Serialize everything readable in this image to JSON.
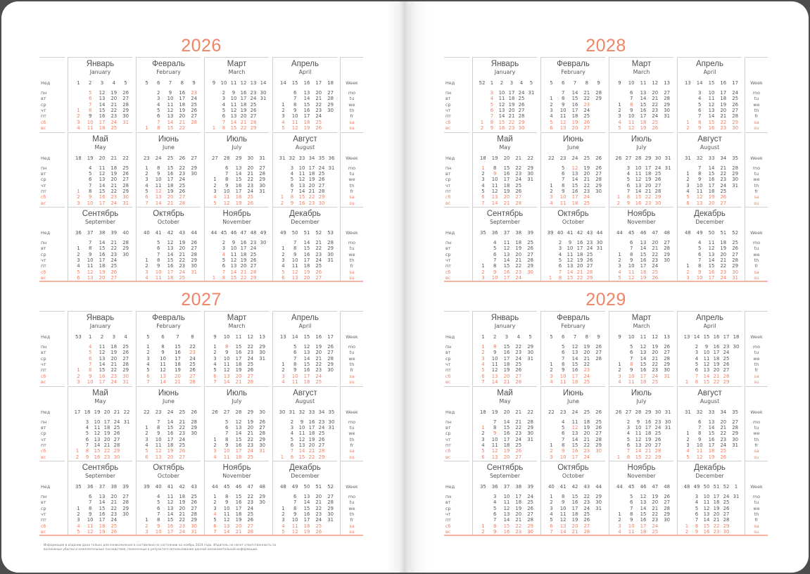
{
  "colors": {
    "accent": "#ef8467",
    "text": "#555555",
    "lines": "#cfcfcf"
  },
  "labels": {
    "week_ru": "Нед",
    "weekdays_ru": [
      "пн",
      "вт",
      "ср",
      "чт",
      "пт",
      "сб",
      "вс"
    ],
    "week_en": "Week",
    "weekdays_en": [
      "mo",
      "tu",
      "we",
      "th",
      "fr",
      "sa",
      "su"
    ]
  },
  "month_names": [
    {
      "ru": "Январь",
      "en": "January"
    },
    {
      "ru": "Февраль",
      "en": "February"
    },
    {
      "ru": "Март",
      "en": "March"
    },
    {
      "ru": "Апрель",
      "en": "April"
    },
    {
      "ru": "Май",
      "en": "May"
    },
    {
      "ru": "Июнь",
      "en": "June"
    },
    {
      "ru": "Июль",
      "en": "July"
    },
    {
      "ru": "Август",
      "en": "August"
    },
    {
      "ru": "Сентябрь",
      "en": "September"
    },
    {
      "ru": "Октябрь",
      "en": "October"
    },
    {
      "ru": "Ноябрь",
      "en": "November"
    },
    {
      "ru": "Декабрь",
      "en": "December"
    }
  ],
  "pages": [
    {
      "years": [
        {
          "year": "2026",
          "weeks": [
            [
              "1",
              "2",
              "3",
              "4",
              "5"
            ],
            [
              "5",
              "6",
              "7",
              "8",
              "9"
            ],
            [
              "9",
              "10",
              "11",
              "12",
              "13",
              "14"
            ],
            [
              "14",
              "15",
              "16",
              "17",
              "18"
            ],
            [
              "18",
              "19",
              "20",
              "21",
              "22"
            ],
            [
              "23",
              "24",
              "25",
              "26",
              "27"
            ],
            [
              "27",
              "28",
              "29",
              "30",
              "31"
            ],
            [
              "31",
              "32",
              "33",
              "34",
              "35",
              "36"
            ],
            [
              "36",
              "37",
              "38",
              "39",
              "40"
            ],
            [
              "40",
              "41",
              "42",
              "43",
              "44"
            ],
            [
              "44",
              "45",
              "46",
              "47",
              "48",
              "49"
            ],
            [
              "49",
              "50",
              "51",
              "52",
              "53"
            ]
          ],
          "holidays": {
            "1": [
              1,
              2,
              5,
              6,
              7,
              8
            ],
            "2": [
              23
            ],
            "5": [
              1
            ],
            "6": [
              12
            ],
            "11": [
              4
            ]
          }
        },
        {
          "year": "2027",
          "weeks": [
            [
              "53",
              "1",
              "2",
              "3",
              "4"
            ],
            [
              "5",
              "6",
              "7",
              "8"
            ],
            [
              "9",
              "10",
              "11",
              "12",
              "13"
            ],
            [
              "13",
              "14",
              "15",
              "16",
              "17"
            ],
            [
              "17",
              "18",
              "19",
              "20",
              "21",
              "22"
            ],
            [
              "22",
              "23",
              "24",
              "25",
              "26"
            ],
            [
              "26",
              "27",
              "28",
              "29",
              "30"
            ],
            [
              "30",
              "31",
              "32",
              "33",
              "34",
              "35"
            ],
            [
              "35",
              "36",
              "37",
              "38",
              "39"
            ],
            [
              "39",
              "40",
              "41",
              "42",
              "43"
            ],
            [
              "44",
              "45",
              "46",
              "47",
              "48"
            ],
            [
              "48",
              "49",
              "50",
              "51",
              "52"
            ]
          ],
          "holidays": {
            "1": [
              1,
              4,
              5,
              6,
              7,
              8
            ],
            "2": [
              23
            ],
            "3": [
              8
            ],
            "11": [
              4
            ]
          }
        }
      ],
      "footer": "Информация в издании дана только для ознакомления и составлена по состоянию на ноябрь 2024 года. Издатель не несет ответственность за возможные убытки и нежелательные последствия, понесенные в результате использования данной ознакомительной информации."
    },
    {
      "years": [
        {
          "year": "2028",
          "weeks": [
            [
              "52",
              "1",
              "2",
              "3",
              "4",
              "5"
            ],
            [
              "5",
              "6",
              "7",
              "8",
              "9"
            ],
            [
              "9",
              "10",
              "11",
              "12",
              "13"
            ],
            [
              "13",
              "14",
              "15",
              "16",
              "17"
            ],
            [
              "18",
              "19",
              "20",
              "21",
              "22"
            ],
            [
              "22",
              "23",
              "24",
              "25",
              "26"
            ],
            [
              "26",
              "27",
              "28",
              "29",
              "30",
              "31"
            ],
            [
              "31",
              "32",
              "33",
              "34",
              "35"
            ],
            [
              "35",
              "36",
              "37",
              "38",
              "39"
            ],
            [
              "39",
              "40",
              "41",
              "42",
              "43",
              "44"
            ],
            [
              "44",
              "45",
              "46",
              "47",
              "48"
            ],
            [
              "48",
              "49",
              "50",
              "51",
              "52"
            ]
          ],
          "holidays": {
            "1": [
              3,
              4,
              5,
              6,
              7
            ],
            "2": [
              23
            ],
            "3": [
              8
            ],
            "5": [
              1,
              9
            ],
            "6": [
              12
            ]
          }
        },
        {
          "year": "2029",
          "weeks": [
            [
              "1",
              "2",
              "3",
              "4",
              "5"
            ],
            [
              "5",
              "6",
              "7",
              "8",
              "9"
            ],
            [
              "9",
              "10",
              "11",
              "12",
              "13"
            ],
            [
              "13",
              "14",
              "15",
              "16",
              "17",
              "18"
            ],
            [
              "18",
              "19",
              "20",
              "21",
              "22"
            ],
            [
              "22",
              "23",
              "24",
              "25",
              "26"
            ],
            [
              "26",
              "27",
              "28",
              "29",
              "30",
              "31"
            ],
            [
              "31",
              "32",
              "33",
              "34",
              "35"
            ],
            [
              "35",
              "36",
              "37",
              "38",
              "39"
            ],
            [
              "40",
              "41",
              "42",
              "43",
              "44"
            ],
            [
              "44",
              "45",
              "46",
              "47",
              "48"
            ],
            [
              "48",
              "49",
              "50",
              "51",
              "52",
              "1"
            ]
          ],
          "holidays": {
            "1": [
              1,
              2,
              3,
              4,
              5,
              8
            ],
            "2": [
              23
            ],
            "3": [
              8
            ],
            "5": [
              1,
              9
            ],
            "6": [
              12
            ]
          }
        }
      ]
    }
  ]
}
